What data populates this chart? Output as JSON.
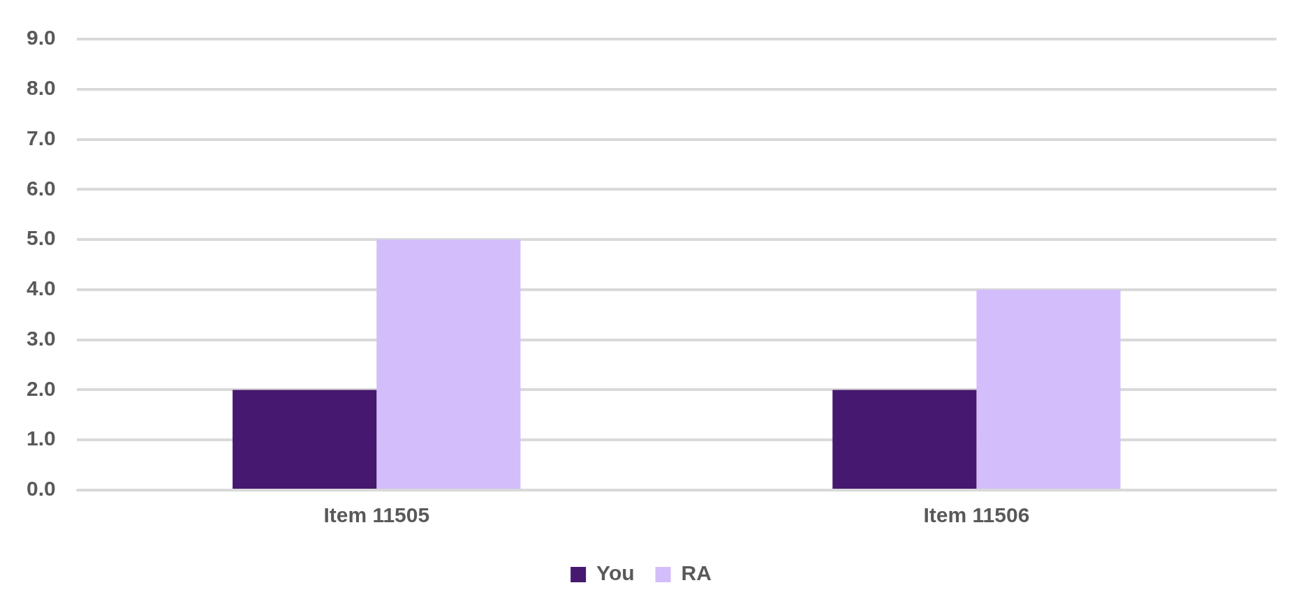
{
  "chart_data": {
    "type": "bar",
    "categories": [
      "Item 11505",
      "Item 11506"
    ],
    "series": [
      {
        "name": "You",
        "color": "#46186f",
        "values": [
          2,
          2
        ]
      },
      {
        "name": "RA",
        "color": "#d4bdfb",
        "values": [
          5,
          4
        ]
      }
    ],
    "ylim": [
      0,
      9
    ],
    "yticks": [
      {
        "value": 0,
        "label": "0.0"
      },
      {
        "value": 1,
        "label": "1.0"
      },
      {
        "value": 2,
        "label": "2.0"
      },
      {
        "value": 3,
        "label": "3.0"
      },
      {
        "value": 4,
        "label": "4.0"
      },
      {
        "value": 5,
        "label": "5.0"
      },
      {
        "value": 6,
        "label": "6.0"
      },
      {
        "value": 7,
        "label": "7.0"
      },
      {
        "value": 8,
        "label": "8.0"
      },
      {
        "value": 9,
        "label": "9.0"
      }
    ],
    "grid": "y",
    "legend": "bottom"
  }
}
